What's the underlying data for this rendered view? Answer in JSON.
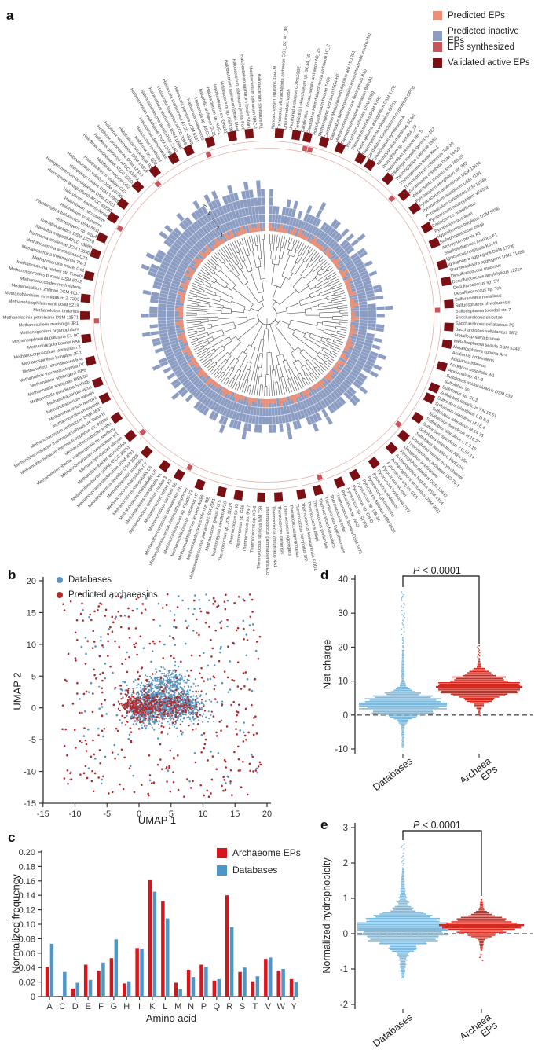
{
  "panels": {
    "a_label": "a",
    "b_label": "b",
    "c_label": "c",
    "d_label": "d",
    "e_label": "e"
  },
  "chart_data": [
    {
      "id": "a",
      "type": "circular-phylo-bar",
      "legend": [
        {
          "label": "Predicted EPs",
          "color": "#EC8F74"
        },
        {
          "label": "Predicted inactive EPs",
          "color": "#8C9DC3"
        },
        {
          "label": "EPs synthesized",
          "color": "#C6545C"
        },
        {
          "label": "Validated active EPs",
          "color": "#7A1013"
        }
      ],
      "radial_ticks": [
        "1",
        "2",
        "3",
        "4",
        "5"
      ],
      "colors": {
        "tree": "#3f3f3f",
        "ring_outline": "#E3B0AA",
        "grid": "rgba(255,255,255,0.6)"
      },
      "species": [
        "Nanoarchaeum equitans Kin4-M",
        "Candidatus Micrarchaeota archaeon CG1_02_47_40",
        "Uncultured archaeon",
        "Uncultured archaeon GZfos26G2",
        "Candidatus Lokiarchaeum sp. GC14_75",
        "Candidatus Thorarchaeota archaeon AB_25",
        "Candidatus Heimdallarchaeota archaeon LC_2",
        "Aciduliprofundum boonei T469",
        "Methanogenic archaeon ISO4-H5",
        "Candidatus Methanomethylophilus alvi Mx1201",
        "Candidatus Methanomassiliicoccus intestinalis Issoire-Mx1",
        "Methanomassiliicoccus luminyensis B10",
        "Thermoplasmatales archaeon BRNA1",
        "Picrophilus oshimae DSM 9789",
        "Picrophilus torridus DSM 9790",
        "Thermoplasma acidophilum DSM 1728",
        "Thermoplasma volcanium GSS1",
        "Candidatus Korarchaeum cryptofilum OPF8",
        "Cenarchaeum symbiosum A",
        "Nitrosopumilus maritimus SCM1",
        "Thermofilum sp. ex4484_79",
        "Thermofilum pendens Hrk 5",
        "Caldivirga maquilingensis IC-167",
        "Thermogladius calderae 1633",
        "Thermoproteus tenax Kra 1",
        "Thermoproteus uzoniensis 768-20",
        "Vulcanisaeta distributa DSM 14429",
        "Vulcanisaeta moutnovskia 768-28",
        "Pyrobaculum aerophilum str. IM2",
        "Pyrobaculum arsenaticum DSM 13514",
        "Pyrobaculum islandicum DSM 4184",
        "Pyrobaculum calidifontis JCM 11548",
        "Pyrobaculum neutrophilum V24Sta",
        "Caldococcus noboribetus",
        "Pyrodictium occultum",
        "Hyperthermus butylicus DSM 5456",
        "Sulfophobococcus zilligii",
        "Aeropyrum pernix K1",
        "Staphylothermus marinus F1",
        "Ignicoccus hospitalis KIN4/I",
        "Ignisphaera aggregans DSM 17230",
        "Thermosphaera aggregans DSM 11486",
        "Desulfurococcus mucosus",
        "Desulfurococcus amylolyticus 1221n",
        "Desulfurococcus sp. SY",
        "Desulfurococcus sp. Tok",
        "Sulfuracidifex metallicus",
        "Sulfurisphaera ohwakuensis",
        "Sulfurisphaera tokodaii str. 7",
        "Saccharolobus shibatae",
        "Saccharolobus solfataricus P2",
        "Saccharolobus solfataricus 98/2",
        "Metallosphaera prunae",
        "Metallosphaera sedula DSM 5348",
        "Metallosphaera cuprina Ar-4",
        "Acidianus ambivalens",
        "Acidianus infernus",
        "Acidianus hospitalis W1",
        "Acidianus sp. A1-3",
        "Sulfolobus acidocaldarius DSM 639",
        "Sulfolobus sp.",
        "Sulfolobus sp. RC3",
        "Sulfolobus islandicus Y.N.15.51",
        "Sulfolobus islandicus L.D.8.5",
        "Sulfolobus islandicus M.16.4",
        "Sulfolobus islandicus M.14.25",
        "Sulfolobus islandicus M.16.27",
        "Sulfolobus islandicus L.S.2.15",
        "Sulfolobus islandicus Y.G.57.14",
        "Sulfolobus islandicus REY15A",
        "Sulfolobus islandicus HVE10/4",
        "Uncultured marine euryarchaeote",
        "Theionarchaea archaeon DG-70-1",
        "Geoglobus acetivorans",
        "Ferroglobus placidus DSM 10642",
        "Archaeoglobus fulgidus DSM 4304",
        "Archaeoglobus profundus DSM 5631",
        "Pyrococcus abyssi GE5",
        "Pyrococcus woesei",
        "Pyrococcus horikoshii OT3",
        "Pyrococcus endeavori",
        "Pyrococcus glycovorans",
        "Pyrococcus furiosus DSM 3638",
        "Pyrococcus sp. GB-3A",
        "Pyrococcus sp. GB-D",
        "Pyrococcus sp. ST700",
        "Pyrococcus sp. NA2",
        "Thermococcus litoralis DSM 5473",
        "Thermococcus celer",
        "Thermococcus hydrothermalis",
        "Thermococcus fumicolans",
        "Thermococcus profundus",
        "Thermococcus zilligii",
        "Thermococcus kodakarensis KOD1",
        "Thermococcus barophilus MP",
        "Thermococcus gorgonarius",
        "Thermococcus aggregans",
        "Thermococcus cleftensis",
        "Thermococcus onnurineus NA1",
        "Thermococcus gammatolerans EJ3",
        "Thermococcus sibiricus MM 739",
        "Thermococcus sp. KS-8",
        "Thermococcus sp. 9N-7",
        "Thermococcus sp. GE8",
        "Thermococcus sp. KI",
        "Thermococcus sp. JCM 11816",
        "Methanopyrus kandleri AV19",
        "Methanotorris igneus Kol 5",
        "Methanocaldococcus jannaschii DSM 2661",
        "Methanocaldococcus infernus ME",
        "Methanocaldococcus fervens AG86",
        "Methanocaldococcus vulcanius M7",
        "Methanocaldococcus sp. FS406-22",
        "Methanothermococcus thermolithotrophicus",
        "Methanothermococcus okinawensis IH1",
        "Methanococcus vannielii SB",
        "Methanococcus voltae A3",
        "Methanococcus aeolicus Nankai-3",
        "Methanococcus maripaludis X1",
        "Methanococcus maripaludis C5",
        "Methanococcus maripaludis C6",
        "Methanococcus maripaludis C7",
        "Methanothermus sociabilis",
        "Methanothermus fervidus DSM 2088",
        "Methanosphaera stadtmanae DSM 3091",
        "Methanobrevibacter smithii ATCC 35061",
        "Methanobrevibacter arboriphilus",
        "Methanobrevibacter olleyae",
        "Methanobrevibacter ruminantium M1",
        "Methanothermobacter marburgensis str. Marburg",
        "Methanothermobacter wolfei",
        "Methanothermobacter thermautotrophicus str. Winter",
        "Methanothermobacter thermautotrophicus str. Delta H",
        "Methanobacterium formicicum DSM 3637",
        "Methanobacterium bryantii",
        "Methanobacterium ivanovii",
        "Methanobacterium paludis",
        "Methanobacterium lacus",
        "Methanocella paludicola SANAE",
        "Methanocella arvoryzae MRE50",
        "Methanothrix soehngenii GP6",
        "Methanothrix thermoacetophila PT",
        "Methanothrix harundinacea 6Ac",
        "Methanospirillum hungatei JF-1",
        "Methanocorpusculum labreanum Z",
        "Methanoregula boonei 6A8",
        "Methanosphaerula palustris E1-9C",
        "Methanogenium organophilum",
        "Methanoculleus marisnigri JR1",
        "Methanolacinia petrolearia DSM 11571",
        "Methanolobus tindarius",
        "Methanohalophilus mahii DSM 5219",
        "Methanohalobium evestigatum Z-7303",
        "Methanosalsum zhilinae DSM 4017",
        "Methanococcoides methylutens",
        "Methanococcoides burtonii DSM 6242",
        "Methanosarcina barkeri str. Fusaro",
        "Methanosarcina mazei Go1",
        "Methanosarcina thermophila TM-1",
        "Methanosarcina acetivorans C2A",
        "Natrinema altunense JCM 12890",
        "Natrialba magadii ATCC 43099",
        "Natrialba asiatica DSM 12278",
        "Haloterrigena sp. arg-4",
        "Haloterrigena turkmenica DSM 5511",
        "Halorubrum sodomense",
        "Halorubrum vacuolatum",
        "Halorubrum ezzemoulense",
        "Halorubrum lacusprofundi ATCC 49239",
        "Halogeometricum borinquense DSM 11551",
        "Haloplanus natans DSM 17983",
        "Haloquadratum walsbyi DSM 16790",
        "Haloquadratum walsbyi C23",
        "Haloferax volcanii DS2",
        "Haloferax mediterranei ATCC 33500",
        "Haloferax gibbonsii ATCC 33959",
        "Haloferax prahovense DSM 18310",
        "Haloferax lucentense DSM 14919",
        "Halalkalicoccus jeotgali B3",
        "Haloferax sp. Q22",
        "Halococcus morrhuae",
        "Halococcus dombrowskii",
        "Halomicrobium mukohataei DSM 12286",
        "Natronomonas pharaonis DSM 2160",
        "Halorhabdus utahensis DSM 12940",
        "Haloarcula hispanica ATCC 33960",
        "Haloarcula marismortui ATCC 43049",
        "Haloarcula japonica DSM 6131",
        "Haloarcula vallismortis",
        "Haloarcula sp. ARG-2",
        "halophilic archaeon DL31",
        "Halobacterium sp. AUS-2",
        "Halobacterium sp. GN101",
        "Halobacterium sp. AS7092",
        "Halobacterium salinarum [strain Mex]",
        "Halobacterium salinarum [strain Port]",
        "Halobacterium salinarum [strain Shark]",
        "Halobacterium salinarum NRC-1",
        "Halobacterium salinarum R1"
      ],
      "series": [
        {
          "name": "Predicted inactive EPs",
          "encoding": "digit 0-9 = bar value on radial axis",
          "values": "5332343423243353233443342435324433433433344342353433442343435445453444534553444443534454334435343443344345344435434434444334345344343435433434435343354434453444565465544565654565455654656455654565465"
        },
        {
          "name": "Predicted EPs",
          "encoding": "digit x 0.5 = bar value on radial axis",
          "values": "2101211012021110121111021101211012102111120112101121011210112110120211201121012111012101121011201112210112101121011210111120112101121011210112101121011210111201211021201121021120112110212011210211201"
        }
      ],
      "outer_ring": {
        "legend_keys": [
          "EPs synthesized",
          "Validated active EPs"
        ],
        "encoding": "0 none, 1 synthesized, 2 validated, 3 both",
        "values": "0200203102002000202000200120020002002000200200021002002000200020200020012002000200020020012002000200200020020002001200200020012000200020020002000200120020002000200200120020002001200020020012000200200"
      }
    },
    {
      "id": "b",
      "type": "scatter",
      "xlabel": "UMAP 1",
      "ylabel": "UMAP 2",
      "xlim": [
        -15,
        20
      ],
      "ylim": [
        -15,
        20
      ],
      "x_ticks": [
        "-15",
        "-10",
        "-5",
        "0",
        "5",
        "10",
        "15",
        "20"
      ],
      "y_ticks": [
        "20",
        "15",
        "10",
        "5",
        "0",
        "-5",
        "-10",
        "-15"
      ],
      "legend": [
        {
          "label": "Databases",
          "color": "#5C93BB"
        },
        {
          "label": "Predicted archaeasins",
          "color": "#B12B2F"
        }
      ],
      "blue_clusters": [
        {
          "x": 3.2,
          "y": 1.3,
          "sx": 2.4,
          "sy": 1.7,
          "n": 800
        },
        {
          "x": 7.6,
          "y": 0.3,
          "sx": 1.5,
          "sy": 1.2,
          "n": 300
        },
        {
          "x": 0.8,
          "y": -0.6,
          "sx": 1.3,
          "sy": 1.0,
          "n": 220
        },
        {
          "x": 5.2,
          "y": 4.5,
          "sx": 1.1,
          "sy": 0.9,
          "n": 120
        }
      ],
      "blue_sparse": {
        "n": 150,
        "xmin": -11,
        "xmax": 19,
        "ymin": -12,
        "ymax": 18
      },
      "red_clusters": [
        {
          "x": 0.3,
          "y": 0.1,
          "sx": 1.6,
          "sy": 1.1,
          "n": 200
        },
        {
          "x": 5.8,
          "y": 0.2,
          "sx": 2.2,
          "sy": 1.2,
          "n": 170
        },
        {
          "x": -1.5,
          "y": 1.0,
          "sx": 0.8,
          "sy": 0.8,
          "n": 60
        }
      ],
      "red_sparse": {
        "n": 360,
        "xmin": -12,
        "xmax": 19,
        "ymin": -14,
        "ymax": 18
      }
    },
    {
      "id": "c",
      "type": "bar",
      "title": "",
      "xlabel": "Amino acid",
      "ylabel": "Normalized frequency",
      "ylim": [
        0,
        0.2
      ],
      "y_ticks": [
        "0.20",
        "0.18",
        "0.16",
        "0.14",
        "0.12",
        "0.10",
        "0.08",
        "0.06",
        "0.04",
        "0.02",
        "0"
      ],
      "categories": [
        "A",
        "C",
        "D",
        "E",
        "F",
        "G",
        "H",
        "I",
        "K",
        "L",
        "M",
        "N",
        "P",
        "Q",
        "R",
        "S",
        "T",
        "V",
        "W",
        "Y"
      ],
      "series": [
        {
          "name": "Archaeome EPs",
          "color": "#D2181D",
          "values": [
            0.041,
            0.001,
            0.011,
            0.044,
            0.036,
            0.053,
            0.018,
            0.067,
            0.161,
            0.132,
            0.019,
            0.037,
            0.044,
            0.022,
            0.14,
            0.034,
            0.021,
            0.052,
            0.036,
            0.024
          ]
        },
        {
          "name": "Databases",
          "color": "#4E96C8",
          "values": [
            0.073,
            0.034,
            0.019,
            0.023,
            0.047,
            0.079,
            0.021,
            0.066,
            0.145,
            0.108,
            0.01,
            0.027,
            0.041,
            0.024,
            0.096,
            0.04,
            0.028,
            0.054,
            0.038,
            0.02
          ]
        }
      ]
    },
    {
      "id": "d",
      "type": "strip-distribution",
      "ylabel": "Net charge",
      "ylim": [
        -10,
        40
      ],
      "y_ticks": [
        "40",
        "30",
        "20",
        "10",
        "0",
        "-10"
      ],
      "p_italic": "P",
      "p_rest": " < 0.0001",
      "categories": [
        {
          "label": "Databases",
          "line2": ""
        },
        {
          "label": "Archaea",
          "line2": "EPs"
        }
      ],
      "series": [
        {
          "name": "Databases",
          "color": "#7FB9DB",
          "mean": 3.1,
          "median": 3.4,
          "sd": 2.2,
          "min": -9.5,
          "max": 36.5
        },
        {
          "name": "Archaea EPs",
          "color": "#D32B20",
          "mean": 8.2,
          "median": 8.3,
          "sd": 2.5,
          "min": -1.0,
          "max": 20.5
        }
      ],
      "zero_line": 0
    },
    {
      "id": "e",
      "type": "strip-distribution",
      "ylabel": "Normalized hydrophobicity",
      "ylim": [
        -2,
        3
      ],
      "y_ticks": [
        "3",
        "2",
        "1",
        "0",
        "-1",
        "-2"
      ],
      "p_italic": "P",
      "p_rest": " < 0.0001",
      "categories": [
        {
          "label": "Databases",
          "line2": ""
        },
        {
          "label": "Archaea",
          "line2": "EPs"
        }
      ],
      "series": [
        {
          "name": "Databases",
          "color": "#7FB9DB",
          "mean": 0.13,
          "median": 0.13,
          "sd": 0.3,
          "min": -1.25,
          "max": 2.55
        },
        {
          "name": "Archaea EPs",
          "color": "#D32B20",
          "mean": 0.25,
          "median": 0.24,
          "sd": 0.17,
          "min": -0.8,
          "max": 1.0
        }
      ],
      "zero_line": 0
    }
  ]
}
